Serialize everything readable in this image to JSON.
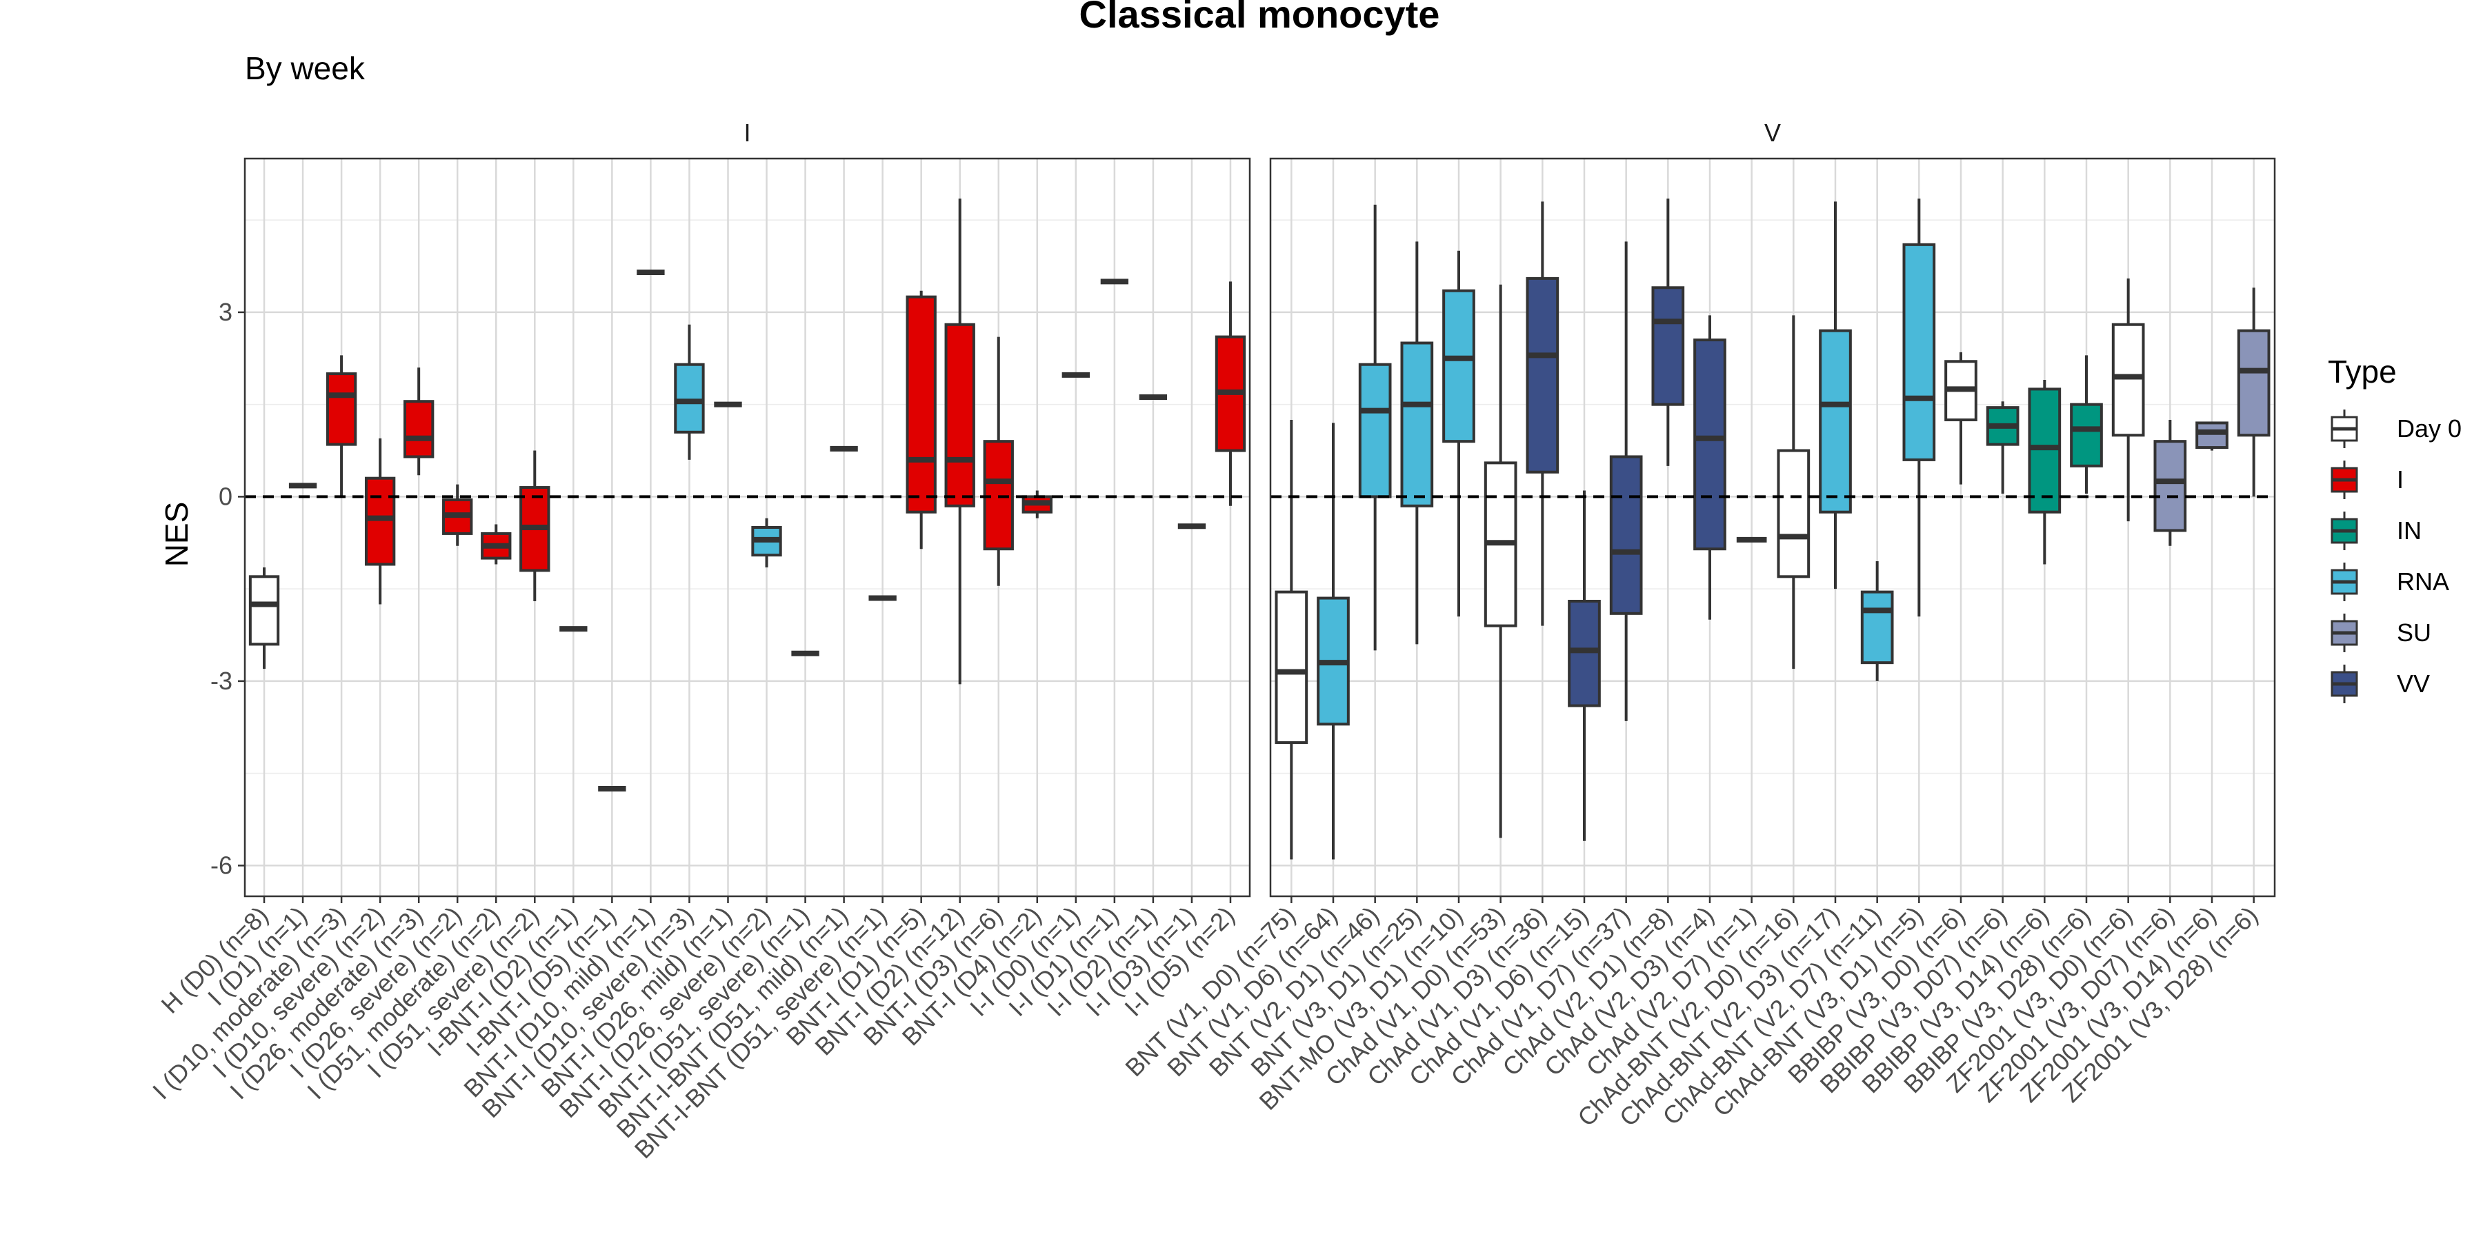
{
  "chart_data": {
    "type": "box",
    "title": "Classical monocyte",
    "subtitle": "By week",
    "ylabel": "NES",
    "xlabel": "",
    "ylim": [
      -6.5,
      5.5
    ],
    "yticks": [
      -6,
      -3,
      0,
      3
    ],
    "reference_line": 0,
    "grid": true,
    "legend": {
      "title": "Type",
      "position": "right",
      "entries": [
        {
          "name": "Day 0",
          "color": "#ffffff"
        },
        {
          "name": "I",
          "color": "#e00000"
        },
        {
          "name": "IN",
          "color": "#009680"
        },
        {
          "name": "RNA",
          "color": "#4ab9d9"
        },
        {
          "name": "SU",
          "color": "#8a94b8"
        },
        {
          "name": "VV",
          "color": "#3b4f87"
        }
      ]
    },
    "panels": [
      {
        "strip": "I",
        "groups": [
          {
            "label": "H (D0) (n=8)",
            "type": "Day 0",
            "min": -2.8,
            "q1": -2.4,
            "median": -1.75,
            "q3": -1.3,
            "max": -1.15
          },
          {
            "label": "I (D1) (n=1)",
            "type": "Day 0",
            "min": 0.18,
            "q1": 0.18,
            "median": 0.18,
            "q3": 0.18,
            "max": 0.18
          },
          {
            "label": "I (D10, moderate) (n=3)",
            "type": "I",
            "min": 0.0,
            "q1": 0.85,
            "median": 1.65,
            "q3": 2.0,
            "max": 2.3
          },
          {
            "label": "I (D10, severe) (n=2)",
            "type": "I",
            "min": -1.75,
            "q1": -1.1,
            "median": -0.35,
            "q3": 0.3,
            "max": 0.95
          },
          {
            "label": "I (D26, moderate) (n=3)",
            "type": "I",
            "min": 0.35,
            "q1": 0.65,
            "median": 0.95,
            "q3": 1.55,
            "max": 2.1
          },
          {
            "label": "I (D26, severe) (n=2)",
            "type": "I",
            "min": -0.8,
            "q1": -0.6,
            "median": -0.3,
            "q3": -0.05,
            "max": 0.2
          },
          {
            "label": "I (D51, moderate) (n=2)",
            "type": "I",
            "min": -1.1,
            "q1": -1.0,
            "median": -0.8,
            "q3": -0.6,
            "max": -0.45
          },
          {
            "label": "I (D51, severe) (n=2)",
            "type": "I",
            "min": -1.7,
            "q1": -1.2,
            "median": -0.5,
            "q3": 0.15,
            "max": 0.75
          },
          {
            "label": "I-BNT-I (D2) (n=1)",
            "type": "VV",
            "min": -2.15,
            "q1": -2.15,
            "median": -2.15,
            "q3": -2.15,
            "max": -2.15
          },
          {
            "label": "I-BNT-I (D5) (n=1)",
            "type": "VV",
            "min": -4.75,
            "q1": -4.75,
            "median": -4.75,
            "q3": -4.75,
            "max": -4.75
          },
          {
            "label": "BNT-I (D10, mild) (n=1)",
            "type": "VV",
            "min": 3.65,
            "q1": 3.65,
            "median": 3.65,
            "q3": 3.65,
            "max": 3.65
          },
          {
            "label": "BNT-I (D10, severe) (n=3)",
            "type": "RNA",
            "min": 0.6,
            "q1": 1.05,
            "median": 1.55,
            "q3": 2.15,
            "max": 2.8
          },
          {
            "label": "BNT-I (D26, mild) (n=1)",
            "type": "VV",
            "min": 1.5,
            "q1": 1.5,
            "median": 1.5,
            "q3": 1.5,
            "max": 1.5
          },
          {
            "label": "BNT-I (D26, severe) (n=2)",
            "type": "RNA",
            "min": -1.15,
            "q1": -0.95,
            "median": -0.7,
            "q3": -0.5,
            "max": -0.35
          },
          {
            "label": "BNT-I (D51, severe) (n=1)",
            "type": "VV",
            "min": -2.55,
            "q1": -2.55,
            "median": -2.55,
            "q3": -2.55,
            "max": -2.55
          },
          {
            "label": "BNT-I-BNT (D51, mild) (n=1)",
            "type": "VV",
            "min": 0.78,
            "q1": 0.78,
            "median": 0.78,
            "q3": 0.78,
            "max": 0.78
          },
          {
            "label": "BNT-I-BNT (D51, severe) (n=1)",
            "type": "VV",
            "min": -1.65,
            "q1": -1.65,
            "median": -1.65,
            "q3": -1.65,
            "max": -1.65
          },
          {
            "label": "BNT-I (D1) (n=5)",
            "type": "I",
            "min": -0.85,
            "q1": -0.25,
            "median": 0.6,
            "q3": 3.25,
            "max": 3.35
          },
          {
            "label": "BNT-I (D2) (n=12)",
            "type": "I",
            "min": -3.05,
            "q1": -0.15,
            "median": 0.6,
            "q3": 2.8,
            "max": 4.85
          },
          {
            "label": "BNT-I (D3) (n=6)",
            "type": "I",
            "min": -1.45,
            "q1": -0.85,
            "median": 0.25,
            "q3": 0.9,
            "max": 2.6
          },
          {
            "label": "BNT-I (D4) (n=2)",
            "type": "I",
            "min": -0.35,
            "q1": -0.25,
            "median": -0.1,
            "q3": 0.0,
            "max": 0.1
          },
          {
            "label": "I-I (D0) (n=1)",
            "type": "VV",
            "min": 1.98,
            "q1": 1.98,
            "median": 1.98,
            "q3": 1.98,
            "max": 1.98
          },
          {
            "label": "I-I (D1) (n=1)",
            "type": "VV",
            "min": 3.5,
            "q1": 3.5,
            "median": 3.5,
            "q3": 3.5,
            "max": 3.5
          },
          {
            "label": "I-I (D2) (n=1)",
            "type": "VV",
            "min": 1.62,
            "q1": 1.62,
            "median": 1.62,
            "q3": 1.62,
            "max": 1.62
          },
          {
            "label": "I-I (D3) (n=1)",
            "type": "VV",
            "min": -0.48,
            "q1": -0.48,
            "median": -0.48,
            "q3": -0.48,
            "max": -0.48
          },
          {
            "label": "I-I (D5) (n=2)",
            "type": "I",
            "min": -0.15,
            "q1": 0.75,
            "median": 1.7,
            "q3": 2.6,
            "max": 3.5
          }
        ]
      },
      {
        "strip": "V",
        "groups": [
          {
            "label": "BNT (V1, D0) (n=75)",
            "type": "Day 0",
            "min": -5.9,
            "q1": -4.0,
            "median": -2.85,
            "q3": -1.55,
            "max": 1.25
          },
          {
            "label": "BNT (V1, D6) (n=64)",
            "type": "RNA",
            "min": -5.9,
            "q1": -3.7,
            "median": -2.7,
            "q3": -1.65,
            "max": 1.2
          },
          {
            "label": "BNT (V2, D1) (n=46)",
            "type": "RNA",
            "min": -2.5,
            "q1": 0.0,
            "median": 1.4,
            "q3": 2.15,
            "max": 4.75
          },
          {
            "label": "BNT (V3, D1) (n=25)",
            "type": "RNA",
            "min": -2.4,
            "q1": -0.15,
            "median": 1.5,
            "q3": 2.5,
            "max": 4.15
          },
          {
            "label": "BNT-MO (V3, D1) (n=10)",
            "type": "RNA",
            "min": -1.95,
            "q1": 0.9,
            "median": 2.25,
            "q3": 3.35,
            "max": 4.0
          },
          {
            "label": "ChAd (V1, D0) (n=53)",
            "type": "Day 0",
            "min": -5.55,
            "q1": -2.1,
            "median": -0.75,
            "q3": 0.55,
            "max": 3.45
          },
          {
            "label": "ChAd (V1, D3) (n=36)",
            "type": "VV",
            "min": -2.1,
            "q1": 0.4,
            "median": 2.3,
            "q3": 3.55,
            "max": 4.8
          },
          {
            "label": "ChAd (V1, D6) (n=15)",
            "type": "VV",
            "min": -5.6,
            "q1": -3.4,
            "median": -2.5,
            "q3": -1.7,
            "max": 0.1
          },
          {
            "label": "ChAd (V1, D7) (n=37)",
            "type": "VV",
            "min": -3.65,
            "q1": -1.9,
            "median": -0.9,
            "q3": 0.65,
            "max": 4.15
          },
          {
            "label": "ChAd (V2, D1) (n=8)",
            "type": "VV",
            "min": 0.5,
            "q1": 1.5,
            "median": 2.85,
            "q3": 3.4,
            "max": 4.85
          },
          {
            "label": "ChAd (V2, D3) (n=4)",
            "type": "VV",
            "min": -2.0,
            "q1": -0.85,
            "median": 0.95,
            "q3": 2.55,
            "max": 2.95
          },
          {
            "label": "ChAd (V2, D7) (n=1)",
            "type": "VV",
            "min": -0.7,
            "q1": -0.7,
            "median": -0.7,
            "q3": -0.7,
            "max": -0.7
          },
          {
            "label": "ChAd-BNT (V2, D0) (n=16)",
            "type": "Day 0",
            "min": -2.8,
            "q1": -1.3,
            "median": -0.65,
            "q3": 0.75,
            "max": 2.95
          },
          {
            "label": "ChAd-BNT (V2, D3) (n=17)",
            "type": "RNA",
            "min": -1.5,
            "q1": -0.25,
            "median": 1.5,
            "q3": 2.7,
            "max": 4.8
          },
          {
            "label": "ChAd-BNT (V2, D7) (n=11)",
            "type": "RNA",
            "min": -3.0,
            "q1": -2.7,
            "median": -1.85,
            "q3": -1.55,
            "max": -1.05
          },
          {
            "label": "ChAd-BNT (V3, D1) (n=5)",
            "type": "RNA",
            "min": -1.95,
            "q1": 0.6,
            "median": 1.6,
            "q3": 4.1,
            "max": 4.85
          },
          {
            "label": "BBIBP (V3, D0) (n=6)",
            "type": "Day 0",
            "min": 0.2,
            "q1": 1.25,
            "median": 1.75,
            "q3": 2.2,
            "max": 2.35
          },
          {
            "label": "BBIBP (V3, D07) (n=6)",
            "type": "IN",
            "min": 0.05,
            "q1": 0.85,
            "median": 1.15,
            "q3": 1.45,
            "max": 1.55
          },
          {
            "label": "BBIBP (V3, D14) (n=6)",
            "type": "IN",
            "min": -1.1,
            "q1": -0.25,
            "median": 0.8,
            "q3": 1.75,
            "max": 1.9
          },
          {
            "label": "BBIBP (V3, D28) (n=6)",
            "type": "IN",
            "min": 0.05,
            "q1": 0.5,
            "median": 1.1,
            "q3": 1.5,
            "max": 2.3
          },
          {
            "label": "ZF2001 (V3, D0) (n=6)",
            "type": "Day 0",
            "min": -0.4,
            "q1": 1.0,
            "median": 1.95,
            "q3": 2.8,
            "max": 3.55
          },
          {
            "label": "ZF2001 (V3, D07) (n=6)",
            "type": "SU",
            "min": -0.8,
            "q1": -0.55,
            "median": 0.25,
            "q3": 0.9,
            "max": 1.25
          },
          {
            "label": "ZF2001 (V3, D14) (n=6)",
            "type": "SU",
            "min": 0.75,
            "q1": 0.8,
            "median": 1.05,
            "q3": 1.2,
            "max": 1.2
          },
          {
            "label": "ZF2001 (V3, D28) (n=6)",
            "type": "SU",
            "min": 0.0,
            "q1": 1.0,
            "median": 2.05,
            "q3": 2.7,
            "max": 3.4
          }
        ]
      }
    ]
  }
}
